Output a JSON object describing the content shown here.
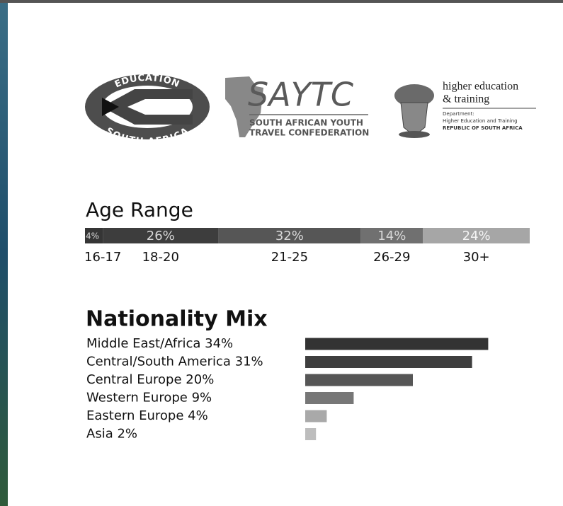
{
  "logos": {
    "education": {
      "top": "EDUCATION",
      "bottom": "SOUTH AFRICA"
    },
    "saytc": {
      "name": "SAYTC",
      "line1": "SOUTH AFRICAN YOUTH",
      "line2": "TRAVEL CONFEDERATION"
    },
    "dhet": {
      "line1": "higher education",
      "line2": "& training",
      "line3": "Department:",
      "line4": "Higher Education and Training",
      "line5": "REPUBLIC OF SOUTH AFRICA"
    }
  },
  "chart_data": [
    {
      "type": "stacked-bar",
      "title": "Age Range",
      "categories": [
        "16-17",
        "18-20",
        "21-25",
        "26-29",
        "30+"
      ],
      "values": [
        4,
        26,
        32,
        14,
        24
      ],
      "value_labels": [
        "4%",
        "26%",
        "32%",
        "14%",
        "24%"
      ],
      "colors": [
        "#353535",
        "#3d3d3d",
        "#565656",
        "#707070",
        "#a6a6a6"
      ]
    },
    {
      "type": "hbar",
      "title": "Nationality Mix",
      "categories": [
        "Middle East/Africa",
        "Central/South America",
        "Central Europe",
        "Western Europe",
        "Eastern Europe",
        "Asia"
      ],
      "values": [
        34,
        31,
        20,
        9,
        4,
        2
      ],
      "value_labels": [
        "34%",
        "31%",
        "20%",
        "9%",
        "4%",
        "2%"
      ],
      "colors": [
        "#333333",
        "#3e3e3e",
        "#565656",
        "#777777",
        "#a9a9a9",
        "#bdbdbd"
      ]
    }
  ]
}
